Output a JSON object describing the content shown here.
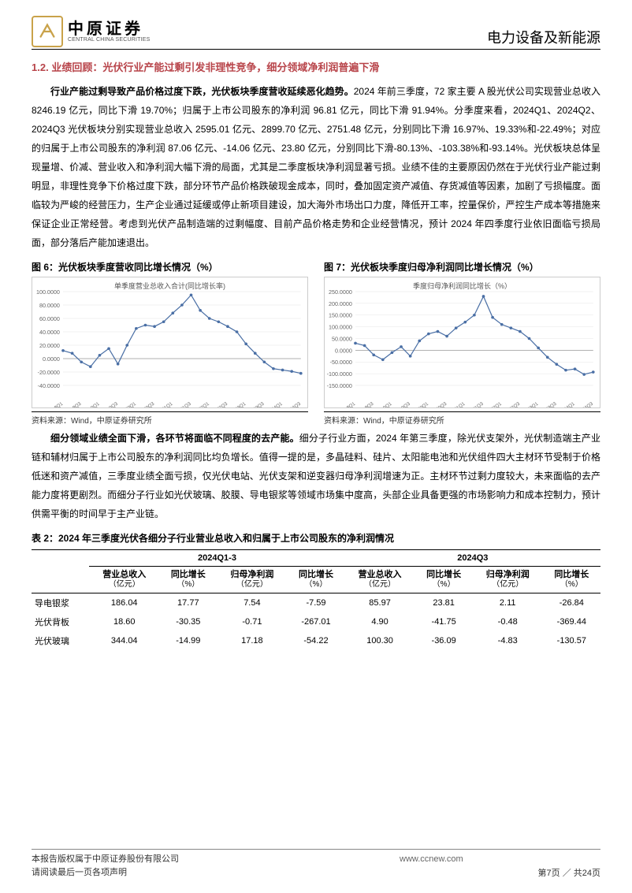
{
  "header": {
    "logo_cn": "中原证券",
    "logo_en": "CENTRAL CHINA SECURITIES",
    "category": "电力设备及新能源"
  },
  "section": {
    "number": "1.2.",
    "title": "业绩回顾：光伏行业产能过剩引发非理性竞争，细分领域净利润普遍下滑"
  },
  "para1_bold": "行业产能过剩导致产品价格过度下跌，光伏板块季度营收延续恶化趋势。",
  "para1_rest": "2024 年前三季度，72 家主要 A 股光伏公司实现营业总收入 8246.19 亿元，同比下滑 19.70%；归属于上市公司股东的净利润 96.81 亿元，同比下滑 91.94%。分季度来看，2024Q1、2024Q2、2024Q3 光伏板块分别实现营业总收入 2595.01 亿元、2899.70 亿元、2751.48 亿元，分别同比下滑 16.97%、19.33%和-22.49%；对应的归属于上市公司股东的净利润 87.06 亿元、-14.06 亿元、23.80 亿元，分别同比下滑-80.13%、-103.38%和-93.14%。光伏板块总体呈现量增、价减、营业收入和净利润大幅下滑的局面，尤其是二季度板块净利润显著亏损。业绩不佳的主要原因仍然在于光伏行业产能过剩明显，非理性竞争下价格过度下跌，部分环节产品价格跌破现金成本，同时，叠加固定资产减值、存货减值等因素，加剧了亏损幅度。面临较为严峻的经营压力，生产企业通过延缓或停止新项目建设，加大海外市场出口力度，降低开工率，控量保价，严控生产成本等措施来保证企业正常经营。考虑到光伏产品制造端的过剩幅度、目前产品价格走势和企业经营情况，预计 2024 年四季度行业依旧面临亏损局面，部分落后产能加速退出。",
  "chart6": {
    "title": "图 6：光伏板块季度营收同比增长情况（%）",
    "legend": "单季度营业总收入合计(同比增长率)",
    "source": "资料来源：Wind，中原证券研究所",
    "type": "line",
    "line_color": "#4a6fa5",
    "marker_color": "#4a6fa5",
    "grid_color": "#e5e5e5",
    "background": "#ffffff",
    "ylim": [
      -40,
      100
    ],
    "ytick_step": 20,
    "x_categories": [
      "2018Q1",
      "2018Q3",
      "2019Q1",
      "2019Q3",
      "2020Q1",
      "2020Q3",
      "2021Q1",
      "2021Q3",
      "2022Q1",
      "2022Q3",
      "2023Q1",
      "2023Q3",
      "2024Q1",
      "2024Q3"
    ],
    "values": [
      12,
      8,
      -5,
      -12,
      5,
      15,
      -8,
      20,
      45,
      50,
      48,
      55,
      68,
      80,
      95,
      72,
      60,
      55,
      48,
      40,
      22,
      8,
      -5,
      -15,
      -17,
      -19,
      -22
    ]
  },
  "chart7": {
    "title": "图 7：光伏板块季度归母净利润同比增长情况（%）",
    "legend": "季度归母净利润同比增长（%）",
    "source": "资料来源：Wind，中原证券研究所",
    "type": "line",
    "line_color": "#4a6fa5",
    "marker_color": "#4a6fa5",
    "grid_color": "#e5e5e5",
    "background": "#ffffff",
    "ylim": [
      -150,
      250
    ],
    "ytick_step": 50,
    "x_categories": [
      "2018Q1",
      "2018Q3",
      "2019Q1",
      "2019Q3",
      "2020Q1",
      "2020Q3",
      "2021Q1",
      "2021Q3",
      "2022Q1",
      "2022Q3",
      "2023Q1",
      "2023Q3",
      "2024Q1",
      "2024Q3"
    ],
    "values": [
      30,
      20,
      -20,
      -40,
      -10,
      15,
      -25,
      40,
      70,
      80,
      60,
      95,
      120,
      150,
      230,
      140,
      110,
      95,
      80,
      50,
      10,
      -30,
      -60,
      -85,
      -80,
      -103,
      -93
    ]
  },
  "para2_bold": "细分领域业绩全面下滑，各环节将面临不同程度的去产能。",
  "para2_rest": "细分子行业方面，2024 年第三季度，除光伏支架外，光伏制造端主产业链和辅材归属于上市公司股东的净利润同比均负增长。值得一提的是，多晶硅料、硅片、太阳能电池和光伏组件四大主材环节受制于价格低迷和资产减值，三季度业绩全面亏损，仅光伏电站、光伏支架和逆变器归母净利润增速为正。主材环节过剩力度较大，未来面临的去产能力度将更剧烈。而细分子行业如光伏玻璃、胶膜、导电银浆等领域市场集中度高，头部企业具备更强的市场影响力和成本控制力，预计供需平衡的时间早于主产业链。",
  "table2": {
    "title": "表 2：2024 年三季度光伏各细分子行业营业总收入和归属于上市公司股东的净利润情况",
    "groups": [
      "2024Q1-3",
      "2024Q3"
    ],
    "columns": [
      "营业总收入",
      "同比增长",
      "归母净利润",
      "同比增长",
      "营业总收入",
      "同比增长",
      "归母净利润",
      "同比增长"
    ],
    "units": [
      "（亿元）",
      "（%）",
      "（亿元）",
      "（%）",
      "（亿元）",
      "（%）",
      "（亿元）",
      "（%）"
    ],
    "rows": [
      {
        "name": "导电银浆",
        "cells": [
          "186.04",
          "17.77",
          "7.54",
          "-7.59",
          "85.97",
          "23.81",
          "2.11",
          "-26.84"
        ]
      },
      {
        "name": "光伏背板",
        "cells": [
          "18.60",
          "-30.35",
          "-0.71",
          "-267.01",
          "4.90",
          "-41.75",
          "-0.48",
          "-369.44"
        ]
      },
      {
        "name": "光伏玻璃",
        "cells": [
          "344.04",
          "-14.99",
          "17.18",
          "-54.22",
          "100.30",
          "-36.09",
          "-4.83",
          "-130.57"
        ]
      }
    ]
  },
  "footer": {
    "line1": "本报告版权属于中原证券股份有限公司",
    "line2": "请阅读最后一页各项声明",
    "url": "www.ccnew.com",
    "page": "第7页 ／ 共24页"
  }
}
